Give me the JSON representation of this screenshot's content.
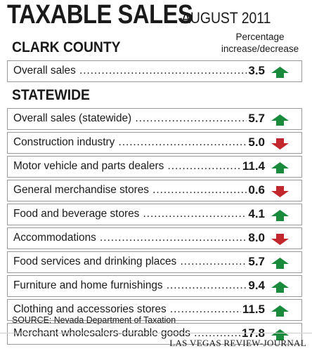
{
  "title": "TAXABLE SALES",
  "date": "AUGUST 2011",
  "column_header_line1": "Percentage",
  "column_header_line2": "increase/decrease",
  "colors": {
    "up": "#1a8a3c",
    "down": "#c1272d",
    "border": "#9a9a9a"
  },
  "chart_data": {
    "type": "table",
    "title": "TAXABLE SALES AUGUST 2011",
    "column_header": "Percentage increase/decrease",
    "sections": [
      {
        "name": "CLARK COUNTY",
        "rows": [
          {
            "label": "Overall sales",
            "value": "3.5",
            "direction": "up"
          }
        ]
      },
      {
        "name": "STATEWIDE",
        "rows": [
          {
            "label": "Overall sales (statewide)",
            "value": "5.7",
            "direction": "up"
          },
          {
            "label": "Construction industry",
            "value": "5.0",
            "direction": "down"
          },
          {
            "label": "Motor vehicle and parts dealers",
            "value": "11.4",
            "direction": "up"
          },
          {
            "label": "General merchandise stores",
            "value": "0.6",
            "direction": "down"
          },
          {
            "label": "Food and beverage stores",
            "value": "4.1",
            "direction": "up"
          },
          {
            "label": "Accommodations",
            "value": "8.0",
            "direction": "down"
          },
          {
            "label": "Food services and drinking places",
            "value": "5.7",
            "direction": "up"
          },
          {
            "label": "Furniture and home furnishings",
            "value": "9.4",
            "direction": "up"
          },
          {
            "label": "Clothing and accessories stores",
            "value": "11.5",
            "direction": "up"
          },
          {
            "label": "Merchant wholesalers-durable goods",
            "value": "17.8",
            "direction": "up"
          }
        ]
      }
    ]
  },
  "source": "SOURCE: Nevada Department of Taxation",
  "credit": "LAS VEGAS REVIEW-JOURNAL"
}
